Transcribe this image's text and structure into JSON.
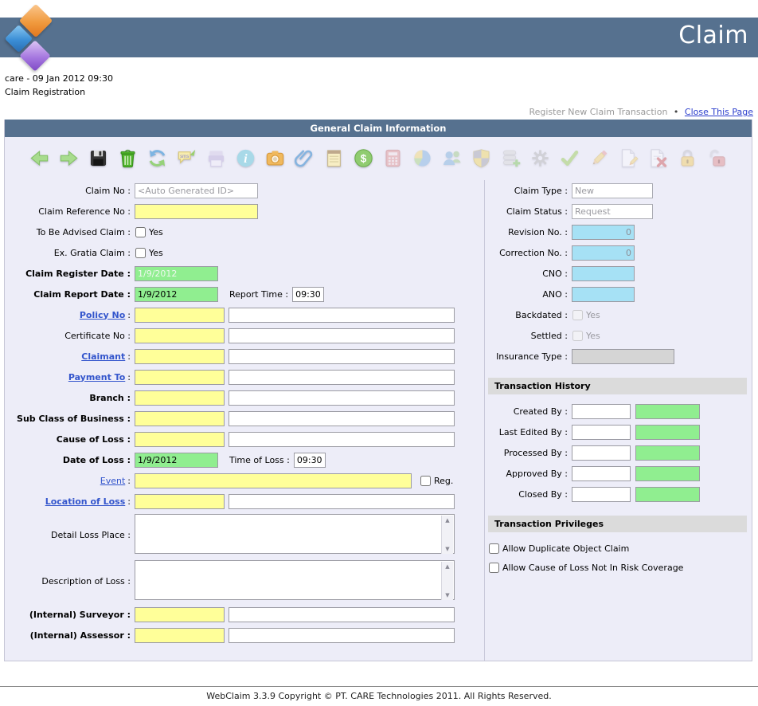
{
  "misc": {
    "colon": ":"
  },
  "header": {
    "title": "Claim"
  },
  "context": {
    "session_line": "care - 09 Jan 2012 09:30",
    "page_title": "Claim Registration"
  },
  "nav": {
    "register_text": "Register New Claim Transaction",
    "bullet": "•",
    "close_link": "Close This Page"
  },
  "panel": {
    "title": "General Claim Information"
  },
  "toolbar": {
    "icons": [
      {
        "name": "navigate-back",
        "disabled": false
      },
      {
        "name": "navigate-forward",
        "disabled": false
      },
      {
        "name": "save",
        "disabled": false
      },
      {
        "name": "delete",
        "disabled": false
      },
      {
        "name": "refresh",
        "disabled": false
      },
      {
        "name": "sms",
        "disabled": false
      },
      {
        "name": "print",
        "disabled": true
      },
      {
        "name": "info",
        "disabled": false
      },
      {
        "name": "photo",
        "disabled": false
      },
      {
        "name": "attachment",
        "disabled": false
      },
      {
        "name": "notes",
        "disabled": false
      },
      {
        "name": "currency",
        "disabled": false
      },
      {
        "name": "calculator",
        "disabled": true
      },
      {
        "name": "chart-pie",
        "disabled": true
      },
      {
        "name": "users",
        "disabled": true
      },
      {
        "name": "shield",
        "disabled": true
      },
      {
        "name": "database-add",
        "disabled": true
      },
      {
        "name": "settings",
        "disabled": true
      },
      {
        "name": "approve",
        "disabled": true
      },
      {
        "name": "pencil",
        "disabled": true
      },
      {
        "name": "edit-document",
        "disabled": true
      },
      {
        "name": "delete-document",
        "disabled": true
      },
      {
        "name": "lock",
        "disabled": true
      },
      {
        "name": "unlock",
        "disabled": true
      }
    ]
  },
  "form_left": {
    "claim_no": {
      "label": "Claim No :",
      "value": "<Auto Generated ID>"
    },
    "claim_reference_no": {
      "label": "Claim Reference No :",
      "value": ""
    },
    "to_be_advised": {
      "label": "To Be Advised Claim :",
      "option": "Yes"
    },
    "ex_gratia": {
      "label": "Ex. Gratia Claim :",
      "option": "Yes"
    },
    "claim_register_date": {
      "label": "Claim Register Date :",
      "value": "1/9/2012"
    },
    "claim_report_date": {
      "label": "Claim Report Date :",
      "value": "1/9/2012"
    },
    "report_time": {
      "label": "Report Time :",
      "value": "09:30"
    },
    "policy_no": {
      "link": "Policy No",
      "code": "",
      "desc": ""
    },
    "certificate_no": {
      "label": "Certificate No :",
      "code": "",
      "desc": ""
    },
    "claimant": {
      "link": "Claimant",
      "code": "",
      "desc": ""
    },
    "payment_to": {
      "link": "Payment To",
      "code": "",
      "desc": ""
    },
    "branch": {
      "label": "Branch :",
      "code": "",
      "desc": ""
    },
    "sub_class": {
      "label": "Sub Class of Business :",
      "code": "",
      "desc": ""
    },
    "cause_of_loss": {
      "label": "Cause of Loss :",
      "code": "",
      "desc": ""
    },
    "date_of_loss": {
      "label": "Date of Loss :",
      "value": "1/9/2012"
    },
    "time_of_loss": {
      "label": "Time of Loss :",
      "value": "09:30"
    },
    "event": {
      "link": "Event",
      "value": "",
      "reg_option": "Reg."
    },
    "location_of_loss": {
      "link": "Location of Loss",
      "code": "",
      "desc": ""
    },
    "detail_loss_place": {
      "label": "Detail Loss Place :",
      "value": ""
    },
    "description_of_loss": {
      "label": "Description of Loss :",
      "value": ""
    },
    "internal_surveyor": {
      "label": "(Internal) Surveyor :",
      "code": "",
      "desc": ""
    },
    "internal_assessor": {
      "label": "(Internal) Assessor :",
      "code": "",
      "desc": ""
    }
  },
  "form_right": {
    "claim_type": {
      "label": "Claim Type :",
      "value": "New"
    },
    "claim_status": {
      "label": "Claim Status :",
      "value": "Request"
    },
    "revision_no": {
      "label": "Revision No. :",
      "value": "0"
    },
    "correction_no": {
      "label": "Correction No. :",
      "value": "0"
    },
    "cno": {
      "label": "CNO :",
      "value": ""
    },
    "ano": {
      "label": "ANO :",
      "value": ""
    },
    "backdated": {
      "label": "Backdated :",
      "option": "Yes"
    },
    "settled": {
      "label": "Settled :",
      "option": "Yes"
    },
    "insurance_type": {
      "label": "Insurance Type :",
      "value": ""
    }
  },
  "transaction_history": {
    "title": "Transaction History",
    "rows": [
      {
        "label": "Created By :"
      },
      {
        "label": "Last Edited By :"
      },
      {
        "label": "Processed By :"
      },
      {
        "label": "Approved By :"
      },
      {
        "label": "Closed By :"
      }
    ]
  },
  "transaction_privileges": {
    "title": "Transaction Privileges",
    "options": [
      "Allow Duplicate Object Claim",
      "Allow Cause of Loss Not In Risk Coverage"
    ]
  },
  "footer": {
    "text": "WebClaim 3.3.9 Copyright © PT. CARE Technologies 2011. All Rights Reserved."
  },
  "colors": {
    "header_blue": "#56718F",
    "field_yellow": "#FFFF99",
    "field_green": "#90EE90",
    "field_sky": "#A6E1F5",
    "link_blue": "#3355CC",
    "section_gray": "#DBDBDB"
  }
}
